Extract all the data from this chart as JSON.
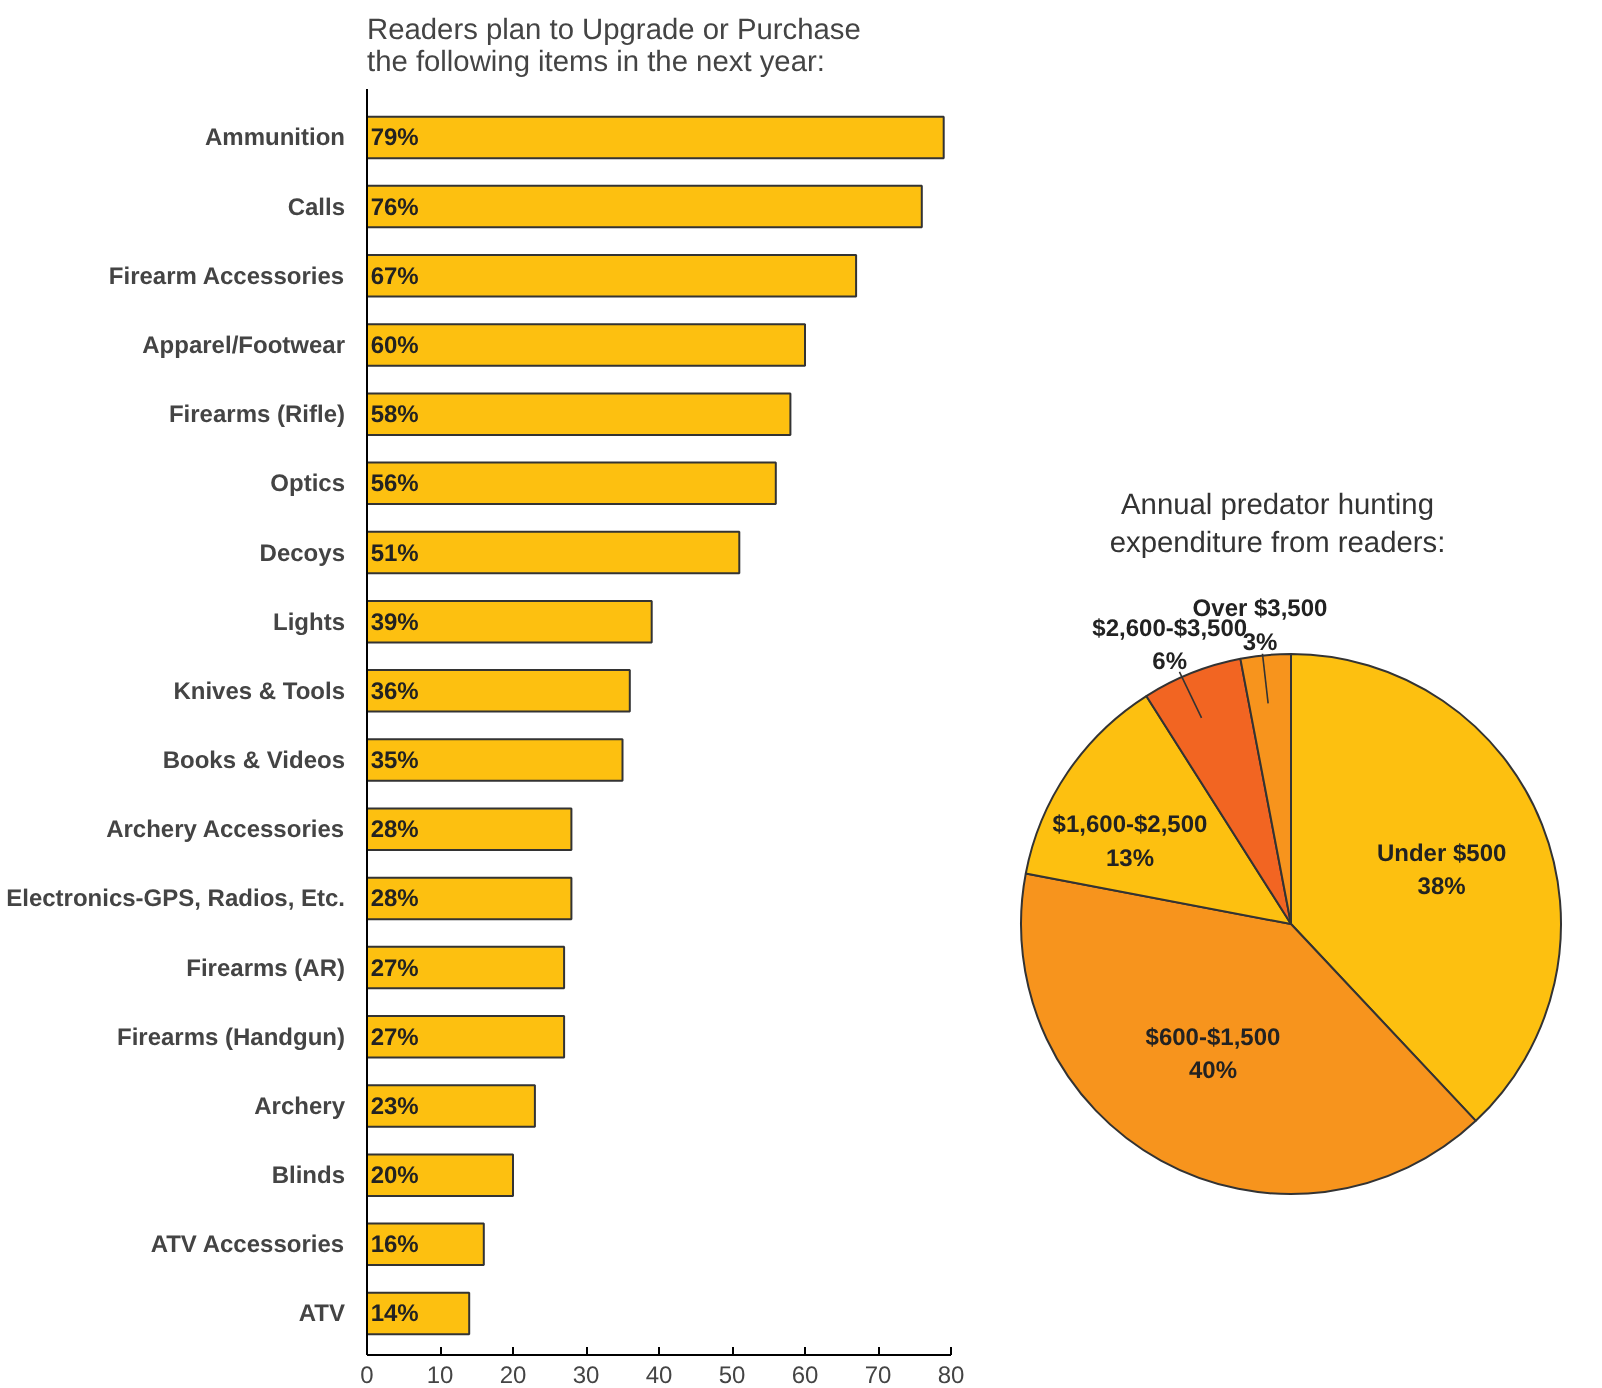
{
  "chart_data": [
    {
      "type": "bar",
      "orientation": "horizontal",
      "title": "Readers plan to Upgrade or Purchase\nthe following items in the next year:",
      "categories": [
        "Ammunition",
        "Calls",
        "Firearm Accessories",
        "Apparel/Footwear",
        "Firearms (Rifle)",
        "Optics",
        "Decoys",
        "Lights",
        "Knives & Tools",
        "Books & Videos",
        "Archery Accessories",
        "Electronics-GPS, Radios, Etc.",
        "Firearms (AR)",
        "Firearms (Handgun)",
        "Archery",
        "Blinds",
        "ATV Accessories",
        "ATV"
      ],
      "values": [
        79,
        76,
        67,
        60,
        58,
        56,
        51,
        39,
        36,
        35,
        28,
        28,
        27,
        27,
        23,
        20,
        16,
        14
      ],
      "value_labels": [
        "79%",
        "76%",
        "67%",
        "60%",
        "58%",
        "56%",
        "51%",
        "39%",
        "36%",
        "35%",
        "28%",
        "28%",
        "27%",
        "27%",
        "23%",
        "20%",
        "16%",
        "14%"
      ],
      "color": "#fdc010",
      "xlim": [
        0,
        80
      ],
      "xticks": [
        0,
        10,
        20,
        30,
        40,
        50,
        60,
        70,
        80
      ],
      "grid": false
    },
    {
      "type": "pie",
      "title": "Annual predator hunting\nexpenditure from readers:",
      "categories": [
        "Under $500",
        "$600-$1,500",
        "$1,600-$2,500",
        "$2,600-$3,500",
        "Over $3,500"
      ],
      "values": [
        38,
        40,
        13,
        6,
        3
      ],
      "value_labels": [
        "38%",
        "40%",
        "13%",
        "6%",
        "3%"
      ],
      "colors": [
        "#fdc010",
        "#f7941d",
        "#fdc010",
        "#f26522",
        "#f7941d"
      ]
    }
  ]
}
